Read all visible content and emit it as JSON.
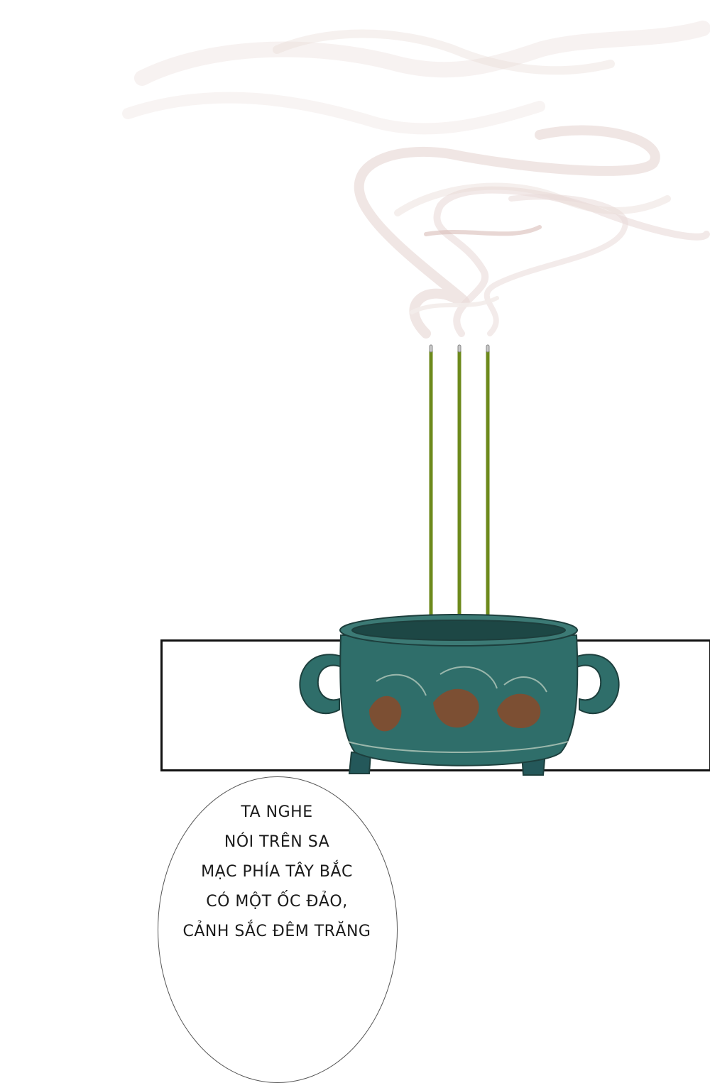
{
  "panel": {
    "speech_bubble": {
      "lines": [
        "TA NGHE",
        "NÓI TRÊN SA",
        "MẠC PHÍA TÂY BẮC",
        "CÓ MỘT ỐC ĐẢO,",
        "CẢNH SẮC ĐÊM TRĂNG"
      ]
    },
    "colors": {
      "background": "#ffffff",
      "censer": "#2f6e6a",
      "censer_dark": "#1f4f4c",
      "incense": "#6f8a1f",
      "smoke": "#e8d9d6",
      "frame": "#111111"
    }
  }
}
